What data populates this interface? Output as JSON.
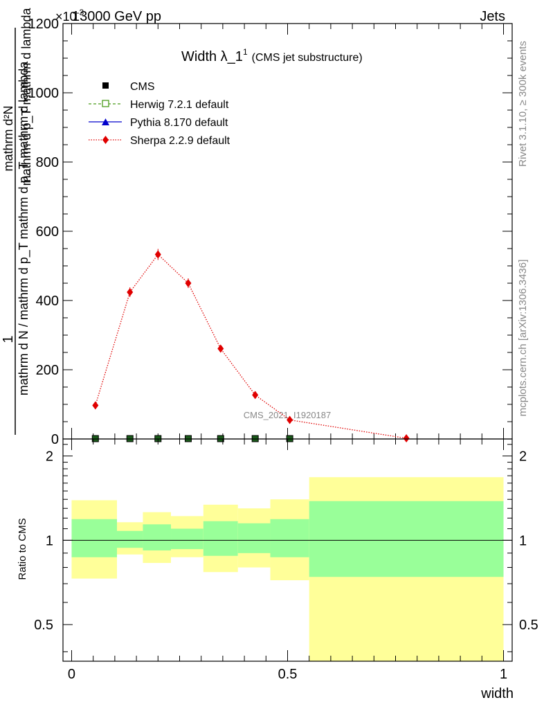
{
  "header": {
    "left": "13000 GeV pp",
    "right": "Jets"
  },
  "plot_title": {
    "main": "Width λ_1",
    "sup": "1",
    "sub": "(CMS jet substructure)"
  },
  "watermark": "CMS_2021_I1920187",
  "side_text": {
    "rivet": "Rivet 3.1.10, ≥ 300k events",
    "mcplots": "mcplots.cern.ch [arXiv:1306.3436]"
  },
  "y_multiplier": "×10",
  "y_multiplier_exp": "-3",
  "ylabel_main": {
    "numerator": "1",
    "denominator": "mathrm d N / mathrm d p_T mathrm d p_T mathrm d lambda",
    "right_num": "mathrm d²N",
    "right_den": "mathrm d p_T mathrm d lambda"
  },
  "ratio_ylabel": "Ratio to CMS",
  "xlabel": "width",
  "legend": [
    {
      "label": "CMS",
      "color": "#000000",
      "marker": "square"
    },
    {
      "label": "Herwig 7.2.1 default",
      "color": "#4a9a1a",
      "marker": "open-square"
    },
    {
      "label": "Pythia 8.170 default",
      "color": "#0000cc",
      "marker": "triangle"
    },
    {
      "label": "Sherpa 2.2.9 default",
      "color": "#e00000",
      "marker": "diamond"
    }
  ],
  "chart_data": {
    "type": "line",
    "x_ticks": [
      "0",
      "0.5",
      "1"
    ],
    "main_y_ticks": [
      "0",
      "200",
      "400",
      "600",
      "800",
      "1000",
      "1200"
    ],
    "ratio_y_ticks": [
      "0.5",
      "1",
      "2"
    ],
    "xlim": [
      -0.02,
      1.02
    ],
    "main_ylim": [
      0,
      1200
    ],
    "ratio_ylim": [
      0.37,
      2.3
    ],
    "ratio_log": true,
    "series": [
      {
        "name": "CMS",
        "x": [
          0.055,
          0.135,
          0.2,
          0.27,
          0.345,
          0.425,
          0.505
        ],
        "y": [
          0,
          0,
          0,
          0,
          0,
          0,
          0
        ]
      },
      {
        "name": "Sherpa 2.2.9 default",
        "x": [
          0.055,
          0.135,
          0.2,
          0.27,
          0.345,
          0.425,
          0.505,
          0.775
        ],
        "y": [
          97,
          424,
          533,
          450,
          261,
          127,
          55,
          2
        ],
        "yerr": [
          6,
          14,
          16,
          14,
          10,
          7,
          4,
          2
        ]
      }
    ],
    "ratio_bands": [
      {
        "x0": 0.0,
        "x1": 0.105,
        "inner": [
          0.87,
          1.19
        ],
        "outer": [
          0.73,
          1.39
        ]
      },
      {
        "x0": 0.105,
        "x1": 0.165,
        "inner": [
          0.94,
          1.08
        ],
        "outer": [
          0.89,
          1.16
        ]
      },
      {
        "x0": 0.165,
        "x1": 0.23,
        "inner": [
          0.92,
          1.14
        ],
        "outer": [
          0.83,
          1.26
        ]
      },
      {
        "x0": 0.23,
        "x1": 0.305,
        "inner": [
          0.93,
          1.1
        ],
        "outer": [
          0.87,
          1.22
        ]
      },
      {
        "x0": 0.305,
        "x1": 0.385,
        "inner": [
          0.88,
          1.17
        ],
        "outer": [
          0.77,
          1.34
        ]
      },
      {
        "x0": 0.385,
        "x1": 0.46,
        "inner": [
          0.9,
          1.15
        ],
        "outer": [
          0.8,
          1.3
        ]
      },
      {
        "x0": 0.46,
        "x1": 0.55,
        "inner": [
          0.87,
          1.19
        ],
        "outer": [
          0.72,
          1.4
        ]
      },
      {
        "x0": 0.55,
        "x1": 1.0,
        "inner": [
          0.74,
          1.38
        ],
        "outer": [
          0.35,
          1.68
        ]
      }
    ]
  }
}
